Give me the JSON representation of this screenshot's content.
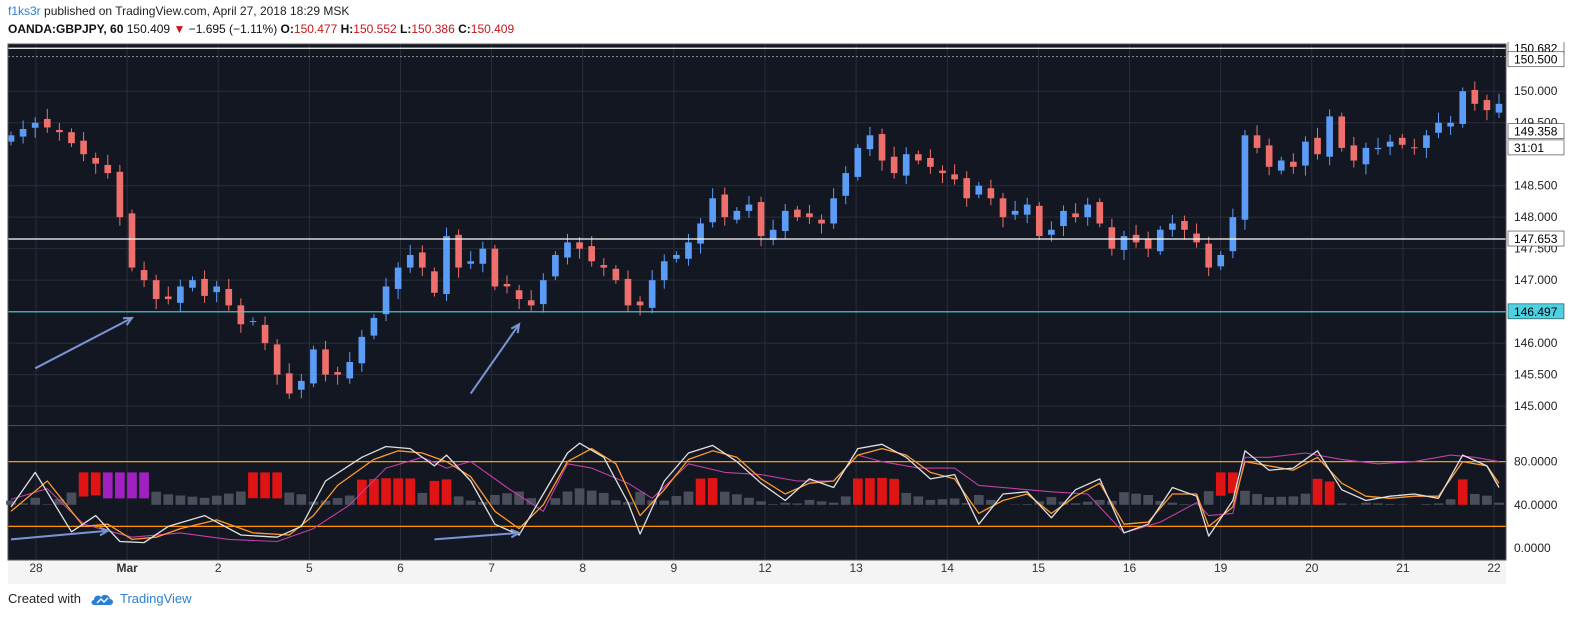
{
  "header": {
    "user": "f1ks3r",
    "published": "published on TradingView.com, April 27, 2018 18:29 MSK",
    "symbol": "OANDA:GBPJPY, 60",
    "last": "150.409",
    "change": "−1.695 (−1.11%)",
    "o_label": "O:",
    "o_value": "150.477",
    "h_label": "H:",
    "h_value": "150.552",
    "l_label": "L:",
    "l_value": "150.386",
    "c_label": "C:",
    "c_value": "150.409"
  },
  "footer": {
    "created": "Created with",
    "brand": "TradingView"
  },
  "colors": {
    "background": "#131722",
    "grid": "#2a2e39",
    "up": "#5b9cf6",
    "down": "#ef6f6c",
    "support": "#4dd0e1",
    "level": "#ffffff",
    "band": "#ff9800",
    "stoch_k": "#e0e0e0",
    "stoch_d": "#ff9a2e",
    "rsi": "#c03fa8",
    "hist": "#4a4e5a",
    "hist_hi": "#e01414",
    "hist_lo": "#a020c0",
    "arrow": "#7a94d4"
  },
  "chart_data": {
    "type": "candlestick",
    "price_axis": {
      "ticks": [
        "150.000",
        "149.500",
        "148.500",
        "148.000",
        "147.500",
        "147.000",
        "146.500",
        "146.000",
        "145.500",
        "145.000"
      ],
      "range": [
        144.7,
        150.75
      ]
    },
    "date_ticks": [
      "28",
      "Mar",
      "2",
      "5",
      "6",
      "7",
      "8",
      "9",
      "12",
      "13",
      "14",
      "15",
      "16",
      "19",
      "20",
      "21",
      "22"
    ],
    "levels": [
      {
        "value": 150.682,
        "label": "150.682",
        "style": "solid",
        "color": "level"
      },
      {
        "value": 147.653,
        "label": "147.653",
        "style": "solid",
        "color": "level"
      },
      {
        "value": 146.497,
        "label": "146.497",
        "style": "solid",
        "color": "support"
      }
    ],
    "price_badges": [
      {
        "value": 150.5,
        "label": "150.500"
      },
      {
        "value": 149.358,
        "label": "149.358"
      },
      {
        "value": 149.1,
        "label": "31:01"
      }
    ],
    "price_path": [
      [
        0,
        149.3
      ],
      [
        2,
        149.5
      ],
      [
        4,
        149.35
      ],
      [
        6,
        149.0
      ],
      [
        8,
        148.7
      ],
      [
        9,
        148.0
      ],
      [
        10,
        147.2
      ],
      [
        11,
        147.0
      ],
      [
        12,
        146.7
      ],
      [
        13,
        146.7
      ],
      [
        14,
        146.9
      ],
      [
        15,
        147.0
      ],
      [
        16,
        146.75
      ],
      [
        17,
        146.9
      ],
      [
        18,
        146.6
      ],
      [
        19,
        146.3
      ],
      [
        20,
        146.35
      ],
      [
        21,
        146.0
      ],
      [
        22,
        145.5
      ],
      [
        23,
        145.2
      ],
      [
        24,
        145.4
      ],
      [
        25,
        145.9
      ],
      [
        26,
        145.5
      ],
      [
        27,
        145.5
      ],
      [
        28,
        145.7
      ],
      [
        29,
        146.1
      ],
      [
        30,
        146.4
      ],
      [
        31,
        146.9
      ],
      [
        32,
        147.2
      ],
      [
        33,
        147.4
      ],
      [
        34,
        147.2
      ],
      [
        35,
        146.8
      ],
      [
        36,
        147.7
      ],
      [
        37,
        147.2
      ],
      [
        38,
        147.3
      ],
      [
        39,
        147.5
      ],
      [
        40,
        146.9
      ],
      [
        41,
        146.9
      ],
      [
        42,
        146.7
      ],
      [
        43,
        146.6
      ],
      [
        44,
        147.0
      ],
      [
        45,
        147.4
      ],
      [
        46,
        147.6
      ],
      [
        47,
        147.5
      ],
      [
        48,
        147.3
      ],
      [
        49,
        147.2
      ],
      [
        50,
        147.0
      ],
      [
        51,
        146.6
      ],
      [
        52,
        146.6
      ],
      [
        53,
        147.0
      ],
      [
        54,
        147.3
      ],
      [
        55,
        147.4
      ],
      [
        56,
        147.6
      ],
      [
        57,
        147.9
      ],
      [
        58,
        148.3
      ],
      [
        59,
        148.0
      ],
      [
        60,
        148.1
      ],
      [
        61,
        148.2
      ],
      [
        62,
        147.7
      ],
      [
        63,
        147.8
      ],
      [
        64,
        148.1
      ],
      [
        65,
        148.0
      ],
      [
        66,
        148.0
      ],
      [
        67,
        147.9
      ],
      [
        68,
        148.3
      ],
      [
        69,
        148.7
      ],
      [
        70,
        149.1
      ],
      [
        71,
        149.3
      ],
      [
        72,
        148.9
      ],
      [
        73,
        148.7
      ],
      [
        74,
        149.0
      ],
      [
        75,
        148.9
      ],
      [
        76,
        148.8
      ],
      [
        77,
        148.7
      ],
      [
        78,
        148.6
      ],
      [
        79,
        148.3
      ],
      [
        80,
        148.5
      ],
      [
        81,
        148.3
      ],
      [
        82,
        148.0
      ],
      [
        83,
        148.1
      ],
      [
        84,
        148.2
      ],
      [
        85,
        147.7
      ],
      [
        86,
        147.8
      ],
      [
        87,
        148.1
      ],
      [
        88,
        148.0
      ],
      [
        89,
        148.2
      ],
      [
        90,
        147.9
      ],
      [
        91,
        147.5
      ],
      [
        92,
        147.7
      ],
      [
        93,
        147.6
      ],
      [
        94,
        147.5
      ],
      [
        95,
        147.8
      ],
      [
        96,
        147.9
      ],
      [
        97,
        147.8
      ],
      [
        98,
        147.6
      ],
      [
        99,
        147.2
      ],
      [
        100,
        147.4
      ],
      [
        101,
        148.0
      ],
      [
        102,
        149.3
      ],
      [
        103,
        149.1
      ],
      [
        104,
        148.8
      ],
      [
        105,
        148.9
      ],
      [
        106,
        148.8
      ],
      [
        107,
        149.2
      ],
      [
        108,
        149.0
      ],
      [
        109,
        149.6
      ],
      [
        110,
        149.1
      ],
      [
        111,
        148.9
      ],
      [
        112,
        149.1
      ],
      [
        113,
        149.1
      ],
      [
        114,
        149.2
      ],
      [
        115,
        149.15
      ],
      [
        116,
        149.1
      ],
      [
        117,
        149.3
      ],
      [
        118,
        149.5
      ],
      [
        119,
        149.5
      ],
      [
        120,
        150.0
      ],
      [
        121,
        149.8
      ],
      [
        122,
        149.7
      ],
      [
        123,
        149.8
      ]
    ],
    "stochastic": {
      "range": [
        0,
        100
      ],
      "ticks": [
        "80.0000",
        "40.0000",
        "0.0000"
      ],
      "bands": [
        80,
        20
      ],
      "k_path": [
        [
          0,
          38
        ],
        [
          2,
          70
        ],
        [
          5,
          15
        ],
        [
          7,
          30
        ],
        [
          9,
          6
        ],
        [
          11,
          5
        ],
        [
          13,
          20
        ],
        [
          16,
          30
        ],
        [
          19,
          12
        ],
        [
          22,
          10
        ],
        [
          24,
          20
        ],
        [
          26,
          62
        ],
        [
          29,
          84
        ],
        [
          31,
          94
        ],
        [
          33,
          92
        ],
        [
          35,
          76
        ],
        [
          36,
          86
        ],
        [
          38,
          62
        ],
        [
          40,
          22
        ],
        [
          42,
          12
        ],
        [
          44,
          50
        ],
        [
          46,
          88
        ],
        [
          47,
          97
        ],
        [
          49,
          84
        ],
        [
          51,
          42
        ],
        [
          52,
          13
        ],
        [
          54,
          62
        ],
        [
          56,
          88
        ],
        [
          58,
          95
        ],
        [
          60,
          80
        ],
        [
          62,
          60
        ],
        [
          64,
          44
        ],
        [
          66,
          64
        ],
        [
          68,
          56
        ],
        [
          70,
          92
        ],
        [
          72,
          96
        ],
        [
          74,
          84
        ],
        [
          76,
          64
        ],
        [
          78,
          68
        ],
        [
          80,
          22
        ],
        [
          82,
          50
        ],
        [
          84,
          52
        ],
        [
          86,
          28
        ],
        [
          88,
          54
        ],
        [
          90,
          64
        ],
        [
          92,
          14
        ],
        [
          94,
          22
        ],
        [
          96,
          56
        ],
        [
          98,
          48
        ],
        [
          99,
          11
        ],
        [
          101,
          44
        ],
        [
          102,
          90
        ],
        [
          104,
          72
        ],
        [
          106,
          74
        ],
        [
          108,
          90
        ],
        [
          110,
          54
        ],
        [
          112,
          44
        ],
        [
          114,
          48
        ],
        [
          116,
          50
        ],
        [
          118,
          46
        ],
        [
          120,
          86
        ],
        [
          122,
          76
        ],
        [
          123,
          56
        ]
      ],
      "d_path": [
        [
          0,
          34
        ],
        [
          3,
          62
        ],
        [
          6,
          20
        ],
        [
          8,
          22
        ],
        [
          10,
          8
        ],
        [
          12,
          10
        ],
        [
          14,
          18
        ],
        [
          17,
          26
        ],
        [
          20,
          14
        ],
        [
          23,
          12
        ],
        [
          25,
          30
        ],
        [
          27,
          58
        ],
        [
          30,
          82
        ],
        [
          32,
          90
        ],
        [
          34,
          88
        ],
        [
          36,
          80
        ],
        [
          38,
          66
        ],
        [
          40,
          34
        ],
        [
          42,
          18
        ],
        [
          44,
          40
        ],
        [
          46,
          80
        ],
        [
          48,
          92
        ],
        [
          50,
          78
        ],
        [
          52,
          30
        ],
        [
          54,
          54
        ],
        [
          56,
          82
        ],
        [
          58,
          90
        ],
        [
          60,
          84
        ],
        [
          62,
          64
        ],
        [
          64,
          50
        ],
        [
          66,
          60
        ],
        [
          68,
          62
        ],
        [
          70,
          86
        ],
        [
          72,
          92
        ],
        [
          74,
          86
        ],
        [
          76,
          70
        ],
        [
          78,
          64
        ],
        [
          80,
          32
        ],
        [
          82,
          44
        ],
        [
          84,
          50
        ],
        [
          86,
          32
        ],
        [
          88,
          48
        ],
        [
          90,
          60
        ],
        [
          92,
          22
        ],
        [
          94,
          24
        ],
        [
          96,
          50
        ],
        [
          98,
          50
        ],
        [
          99,
          20
        ],
        [
          101,
          38
        ],
        [
          102,
          80
        ],
        [
          104,
          76
        ],
        [
          106,
          72
        ],
        [
          108,
          84
        ],
        [
          110,
          60
        ],
        [
          112,
          48
        ],
        [
          114,
          46
        ],
        [
          116,
          48
        ],
        [
          118,
          48
        ],
        [
          120,
          80
        ],
        [
          122,
          76
        ],
        [
          123,
          60
        ]
      ],
      "rsi_path": [
        [
          0,
          45
        ],
        [
          3,
          55
        ],
        [
          6,
          22
        ],
        [
          10,
          10
        ],
        [
          14,
          14
        ],
        [
          18,
          8
        ],
        [
          22,
          6
        ],
        [
          25,
          18
        ],
        [
          28,
          40
        ],
        [
          31,
          74
        ],
        [
          34,
          84
        ],
        [
          36,
          74
        ],
        [
          38,
          80
        ],
        [
          41,
          56
        ],
        [
          44,
          34
        ],
        [
          46,
          78
        ],
        [
          48,
          74
        ],
        [
          51,
          60
        ],
        [
          53,
          46
        ],
        [
          56,
          78
        ],
        [
          59,
          70
        ],
        [
          62,
          68
        ],
        [
          65,
          62
        ],
        [
          68,
          62
        ],
        [
          70,
          86
        ],
        [
          72,
          80
        ],
        [
          75,
          74
        ],
        [
          78,
          74
        ],
        [
          80,
          58
        ],
        [
          83,
          55
        ],
        [
          86,
          52
        ],
        [
          89,
          50
        ],
        [
          92,
          14
        ],
        [
          95,
          24
        ],
        [
          98,
          42
        ],
        [
          99,
          30
        ],
        [
          101,
          32
        ],
        [
          102,
          84
        ],
        [
          104,
          84
        ],
        [
          107,
          88
        ],
        [
          110,
          82
        ],
        [
          113,
          78
        ],
        [
          116,
          80
        ],
        [
          119,
          86
        ],
        [
          121,
          84
        ],
        [
          123,
          80
        ]
      ],
      "hist_hi_ranges": [
        [
          6,
          11
        ],
        [
          20,
          22
        ],
        [
          29,
          33
        ],
        [
          35,
          36
        ],
        [
          57,
          58
        ],
        [
          70,
          73
        ],
        [
          100,
          101
        ],
        [
          108,
          109
        ],
        [
          120,
          120
        ]
      ],
      "hist_lo_range": [
        8,
        11
      ]
    },
    "arrows": [
      {
        "from": [
          2,
          145.6
        ],
        "to": [
          10,
          146.4
        ],
        "pane": "price"
      },
      {
        "from": [
          38,
          145.2
        ],
        "to": [
          42,
          146.3
        ],
        "pane": "price"
      },
      {
        "from": [
          0,
          8
        ],
        "to": [
          8,
          16
        ],
        "pane": "stoch"
      },
      {
        "from": [
          35,
          8
        ],
        "to": [
          42,
          14
        ],
        "pane": "stoch"
      }
    ]
  }
}
